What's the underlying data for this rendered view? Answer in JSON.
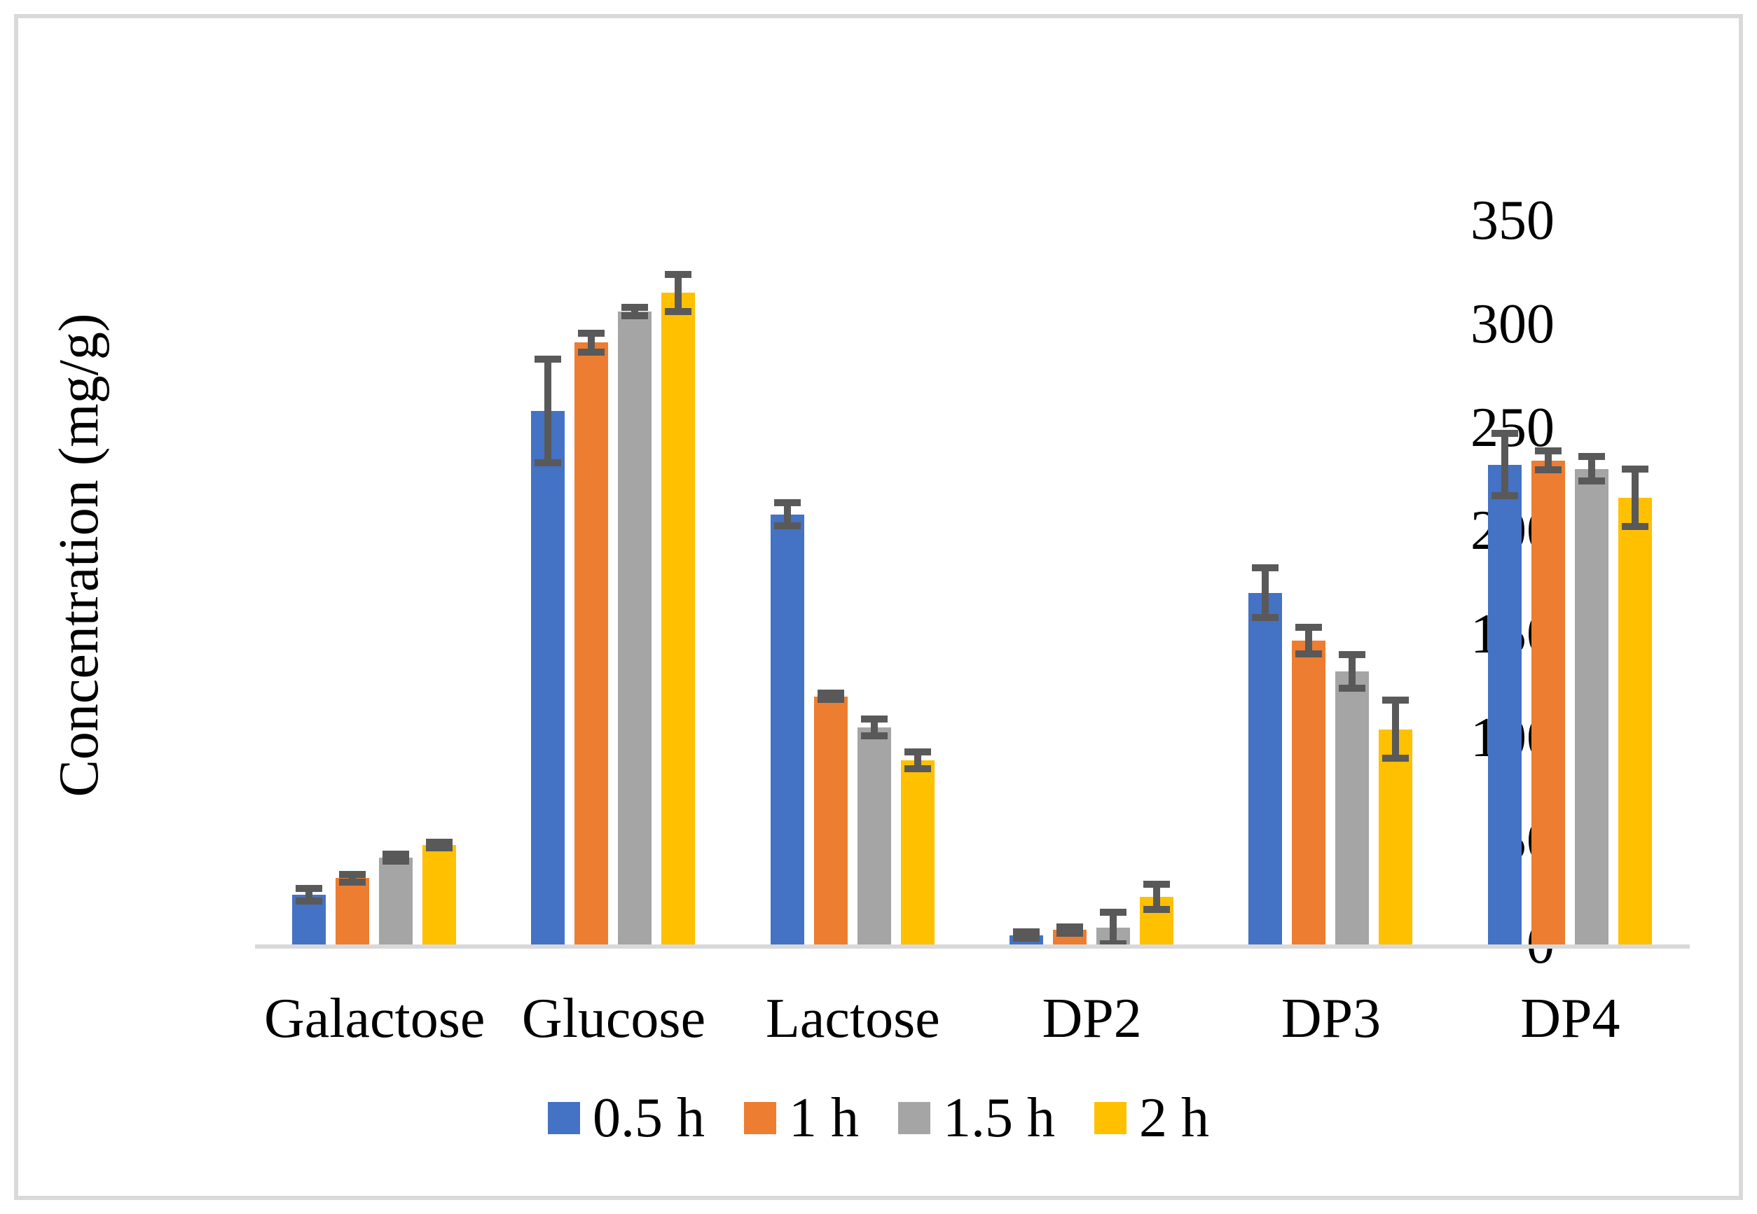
{
  "figure": {
    "background": "#FFFFFF",
    "border_color": "#D9D9D9"
  },
  "chart_data": {
    "type": "bar",
    "title": "",
    "xlabel": "",
    "ylabel": "Concentration (mg/g)",
    "ylim": [
      0,
      350
    ],
    "yticks": [
      0,
      50,
      100,
      150,
      200,
      250,
      300,
      350
    ],
    "grid": false,
    "legend_position": "bottom",
    "axis_line_color": "#D9D9D9",
    "error_bar_color": "#595959",
    "categories": [
      "Galactose",
      "Glucose",
      "Lactose",
      "DP2",
      "DP3",
      "DP4"
    ],
    "series": [
      {
        "name": "0.5 h",
        "color": "#4472C4",
        "values": [
          24,
          258,
          208,
          4.5,
          170,
          232
        ],
        "errors": [
          3,
          25,
          5.5,
          1.5,
          12,
          15
        ]
      },
      {
        "name": "1 h",
        "color": "#ED7D31",
        "values": [
          32,
          291,
          120,
          7,
          147,
          234
        ],
        "errors": [
          2,
          4.5,
          1.5,
          1.5,
          6.5,
          4.5
        ]
      },
      {
        "name": "1.5 h",
        "color": "#A5A5A5",
        "values": [
          42,
          306,
          105,
          8,
          132,
          230
        ],
        "errors": [
          1.7,
          2,
          4,
          7.5,
          8,
          6
        ]
      },
      {
        "name": "2 h",
        "color": "#FFC000",
        "values": [
          48,
          315,
          89,
          23,
          104,
          216
        ],
        "errors": [
          1.3,
          9,
          4,
          6,
          14,
          14
        ]
      }
    ]
  }
}
